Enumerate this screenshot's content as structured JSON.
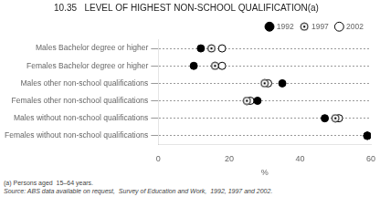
{
  "chart_data": {
    "type": "dot",
    "orientation": "horizontal",
    "title": "10.35   LEVEL OF HIGHEST NON-SCHOOL QUALIFICATION(a)",
    "categories": [
      "Males Bachelor degree or higher",
      "Females Bachelor degree or higher",
      "Males other non-school qualifications",
      "Females other non-school qualifications",
      "Males without non-school qualifications",
      "Females without non-school qualifications"
    ],
    "series": [
      {
        "name": "1992",
        "color": "#000000",
        "marker": "filled",
        "values": [
          12,
          10,
          35,
          28,
          47,
          59
        ]
      },
      {
        "name": "1997",
        "color": "#000000",
        "marker": "dotted",
        "values": [
          15,
          16,
          30,
          25,
          50,
          59
        ]
      },
      {
        "name": "2002",
        "color": "#000000",
        "marker": "open",
        "values": [
          18,
          18,
          31,
          26,
          51,
          59
        ]
      }
    ],
    "xlabel": "%",
    "xlim": [
      0,
      60
    ],
    "xticks": [
      0,
      20,
      40,
      60
    ],
    "grid": true,
    "legend": "upper right",
    "annotations": [
      "(a) Persons aged  15–64 years.",
      "Source: ABS data available on request,  Survey of Education and Work,  1992, 1997 and 2002."
    ]
  }
}
